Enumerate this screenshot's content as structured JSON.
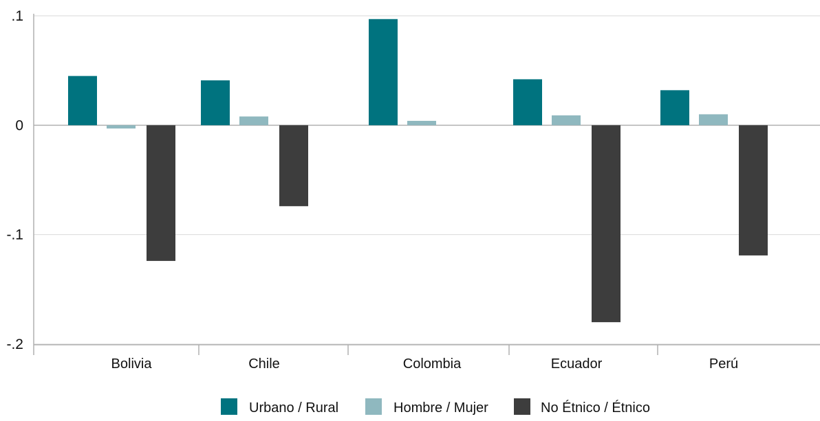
{
  "chart_data": {
    "type": "bar",
    "title": "",
    "xlabel": "",
    "ylabel": "",
    "categories": [
      "Bolivia",
      "Chile",
      "Colombia",
      "Ecuador",
      "Perú"
    ],
    "series": [
      {
        "name": "Urbano / Rural",
        "color": "#00737f",
        "values": [
          0.045,
          0.041,
          0.097,
          0.042,
          0.032
        ]
      },
      {
        "name": "Hombre / Mujer",
        "color": "#8fb8bf",
        "values": [
          -0.003,
          0.008,
          0.004,
          0.009,
          0.01
        ]
      },
      {
        "name": "No Étnico / Étnico",
        "color": "#3d3d3d",
        "values": [
          -0.124,
          -0.074,
          0.0,
          -0.18,
          -0.119
        ]
      }
    ],
    "ylim": [
      -0.2,
      0.1
    ],
    "yticks": [
      {
        "value": 0.1,
        "label": ".1"
      },
      {
        "value": 0.0,
        "label": "0"
      },
      {
        "value": -0.1,
        "label": "-.1"
      },
      {
        "value": -0.2,
        "label": "-.2"
      }
    ],
    "grid": true,
    "legend_position": "bottom"
  }
}
